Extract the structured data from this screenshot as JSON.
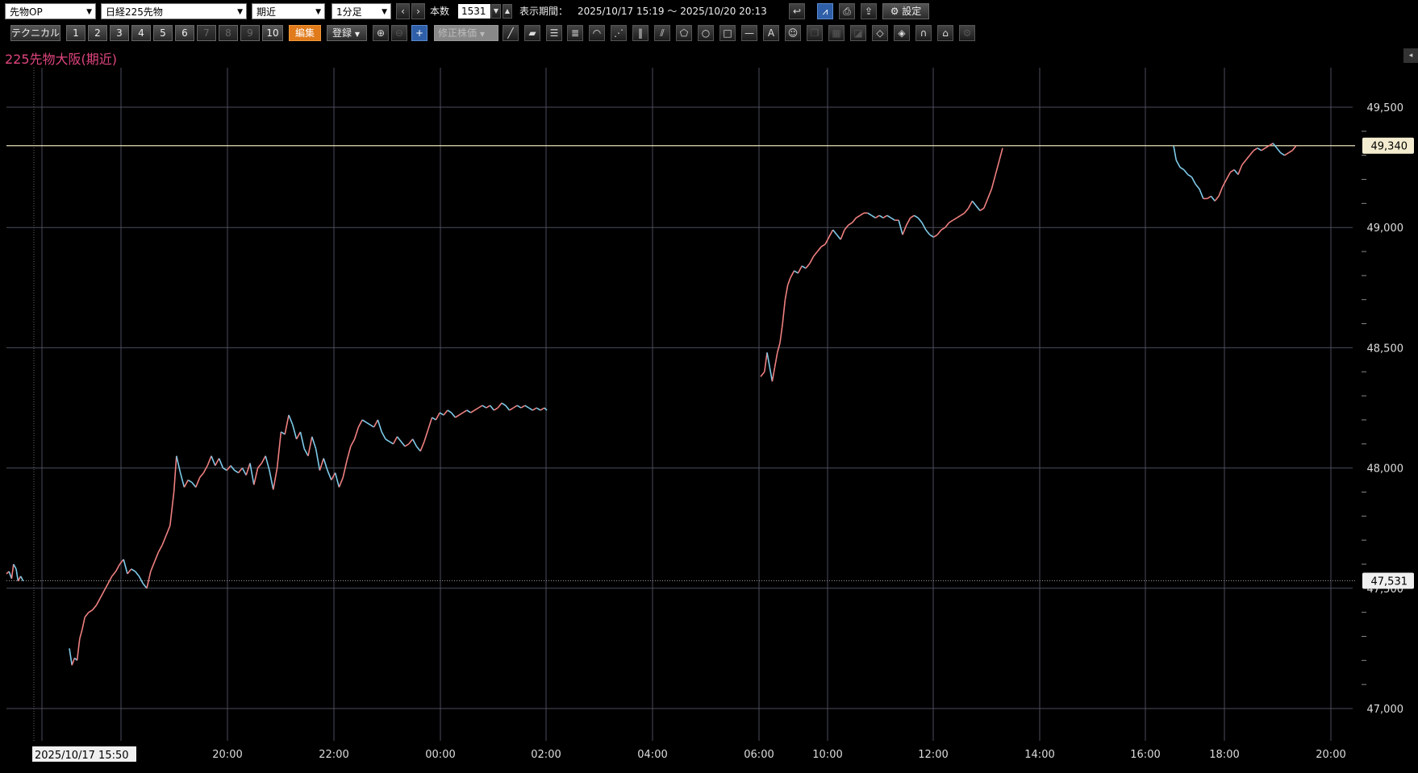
{
  "toolbar": {
    "market_select": "先物OP",
    "instrument_select": "日経225先物",
    "contract_select": "期近",
    "interval_select": "1分足",
    "prev_label": "‹",
    "next_label": "›",
    "bars_label": "本数",
    "bars_value": "1531",
    "period_label": "表示期間：",
    "period_value": "2025/10/17 15:19 ～ 2025/10/20 20:13",
    "settings_label": "設定",
    "technical_label": "テクニカル",
    "presets": [
      "1",
      "2",
      "3",
      "4",
      "5",
      "6",
      "7",
      "8",
      "9",
      "10"
    ],
    "edit_label": "編集",
    "register_label": "登録",
    "adjusted_price_label": "修正株価"
  },
  "chart_title": "225先物大阪(期近)",
  "chart_data": {
    "type": "line",
    "title": "225先物大阪(期近)",
    "ylim": [
      46940,
      49760
    ],
    "yticks": [
      47000,
      47500,
      48000,
      48500,
      49000,
      49500
    ],
    "ytick_labels": [
      "47,000",
      "47,500",
      "48,000",
      "48,500",
      "49,000",
      "49,500"
    ],
    "xtick_labels": [
      "20:00",
      "22:00",
      "00:00",
      "02:00",
      "04:00",
      "06:00",
      "10:00",
      "12:00",
      "14:00",
      "16:00",
      "18:00",
      "20:00"
    ],
    "cursor_label": "2025/10/17 15:50",
    "last_price": 49340,
    "last_price_label": "49,340",
    "ref_price": 47531,
    "ref_price_label": "47,531",
    "grid": true,
    "up_color": "#f08080",
    "down_color": "#7ecbea",
    "series": [
      {
        "segment": "pre",
        "points": [
          [
            0,
            47560
          ],
          [
            4,
            47570
          ],
          [
            8,
            47540
          ],
          [
            11,
            47600
          ],
          [
            15,
            47580
          ],
          [
            18,
            47530
          ],
          [
            22,
            47550
          ],
          [
            26,
            47530
          ]
        ]
      },
      {
        "segment": "night",
        "points": [
          [
            0,
            47250
          ],
          [
            4,
            47180
          ],
          [
            8,
            47210
          ],
          [
            12,
            47200
          ],
          [
            16,
            47290
          ],
          [
            20,
            47330
          ],
          [
            24,
            47380
          ],
          [
            30,
            47400
          ],
          [
            36,
            47410
          ],
          [
            42,
            47430
          ],
          [
            48,
            47460
          ],
          [
            54,
            47490
          ],
          [
            60,
            47520
          ],
          [
            66,
            47550
          ],
          [
            72,
            47570
          ],
          [
            78,
            47600
          ],
          [
            84,
            47620
          ],
          [
            90,
            47560
          ],
          [
            96,
            47580
          ],
          [
            102,
            47570
          ],
          [
            108,
            47550
          ],
          [
            114,
            47520
          ],
          [
            120,
            47500
          ],
          [
            126,
            47570
          ],
          [
            132,
            47610
          ],
          [
            138,
            47650
          ],
          [
            144,
            47680
          ],
          [
            150,
            47720
          ],
          [
            156,
            47760
          ],
          [
            162,
            47900
          ],
          [
            166,
            48050
          ],
          [
            172,
            47980
          ],
          [
            178,
            47920
          ],
          [
            184,
            47950
          ],
          [
            190,
            47940
          ],
          [
            196,
            47920
          ],
          [
            202,
            47960
          ],
          [
            208,
            47980
          ],
          [
            214,
            48010
          ],
          [
            220,
            48050
          ],
          [
            226,
            48010
          ],
          [
            232,
            48040
          ],
          [
            238,
            48000
          ],
          [
            244,
            47990
          ],
          [
            250,
            48010
          ],
          [
            256,
            47990
          ],
          [
            262,
            47980
          ],
          [
            268,
            48000
          ],
          [
            274,
            47970
          ],
          [
            280,
            48020
          ],
          [
            286,
            47930
          ],
          [
            292,
            48000
          ],
          [
            298,
            48020
          ],
          [
            304,
            48050
          ],
          [
            310,
            47990
          ],
          [
            316,
            47910
          ],
          [
            322,
            48000
          ],
          [
            328,
            48150
          ],
          [
            334,
            48140
          ],
          [
            340,
            48220
          ],
          [
            346,
            48180
          ],
          [
            352,
            48120
          ],
          [
            358,
            48150
          ],
          [
            364,
            48080
          ],
          [
            370,
            48050
          ],
          [
            376,
            48130
          ],
          [
            382,
            48080
          ],
          [
            388,
            47990
          ],
          [
            394,
            48040
          ],
          [
            400,
            47990
          ],
          [
            406,
            47950
          ],
          [
            412,
            47980
          ],
          [
            418,
            47920
          ],
          [
            424,
            47960
          ],
          [
            430,
            48030
          ],
          [
            436,
            48090
          ],
          [
            442,
            48120
          ],
          [
            448,
            48170
          ],
          [
            454,
            48200
          ],
          [
            460,
            48190
          ],
          [
            466,
            48180
          ],
          [
            472,
            48170
          ],
          [
            478,
            48200
          ],
          [
            484,
            48150
          ],
          [
            490,
            48120
          ],
          [
            496,
            48110
          ],
          [
            502,
            48100
          ],
          [
            508,
            48130
          ],
          [
            514,
            48110
          ],
          [
            520,
            48090
          ],
          [
            526,
            48100
          ],
          [
            532,
            48120
          ],
          [
            538,
            48090
          ],
          [
            544,
            48070
          ],
          [
            550,
            48110
          ],
          [
            556,
            48160
          ],
          [
            562,
            48210
          ],
          [
            568,
            48200
          ],
          [
            574,
            48230
          ],
          [
            580,
            48220
          ],
          [
            586,
            48240
          ],
          [
            592,
            48230
          ],
          [
            598,
            48210
          ],
          [
            604,
            48220
          ],
          [
            610,
            48230
          ],
          [
            616,
            48240
          ],
          [
            622,
            48230
          ],
          [
            628,
            48240
          ],
          [
            634,
            48250
          ],
          [
            640,
            48260
          ],
          [
            646,
            48250
          ],
          [
            652,
            48260
          ],
          [
            658,
            48240
          ],
          [
            664,
            48250
          ],
          [
            670,
            48270
          ],
          [
            676,
            48260
          ],
          [
            682,
            48240
          ],
          [
            688,
            48250
          ],
          [
            694,
            48260
          ],
          [
            700,
            48250
          ],
          [
            706,
            48260
          ],
          [
            712,
            48250
          ],
          [
            718,
            48240
          ],
          [
            724,
            48250
          ],
          [
            730,
            48240
          ],
          [
            736,
            48250
          ],
          [
            740,
            48240
          ]
        ]
      },
      {
        "segment": "day",
        "points": [
          [
            0,
            48380
          ],
          [
            6,
            48400
          ],
          [
            10,
            48480
          ],
          [
            14,
            48420
          ],
          [
            18,
            48360
          ],
          [
            22,
            48420
          ],
          [
            26,
            48480
          ],
          [
            30,
            48520
          ],
          [
            34,
            48600
          ],
          [
            38,
            48700
          ],
          [
            42,
            48760
          ],
          [
            46,
            48790
          ],
          [
            52,
            48820
          ],
          [
            58,
            48810
          ],
          [
            64,
            48840
          ],
          [
            70,
            48830
          ],
          [
            76,
            48850
          ],
          [
            82,
            48880
          ],
          [
            88,
            48900
          ],
          [
            94,
            48920
          ],
          [
            100,
            48930
          ],
          [
            106,
            48960
          ],
          [
            112,
            48990
          ],
          [
            118,
            48970
          ],
          [
            124,
            48950
          ],
          [
            130,
            48990
          ],
          [
            136,
            49010
          ],
          [
            142,
            49020
          ],
          [
            148,
            49040
          ],
          [
            154,
            49050
          ],
          [
            160,
            49060
          ],
          [
            166,
            49060
          ],
          [
            172,
            49050
          ],
          [
            178,
            49040
          ],
          [
            184,
            49050
          ],
          [
            190,
            49040
          ],
          [
            196,
            49050
          ],
          [
            202,
            49040
          ],
          [
            208,
            49030
          ],
          [
            214,
            49030
          ],
          [
            220,
            48970
          ],
          [
            226,
            49010
          ],
          [
            232,
            49040
          ],
          [
            238,
            49050
          ],
          [
            244,
            49040
          ],
          [
            250,
            49020
          ],
          [
            256,
            48990
          ],
          [
            262,
            48970
          ],
          [
            268,
            48960
          ],
          [
            274,
            48970
          ],
          [
            280,
            48990
          ],
          [
            286,
            49000
          ],
          [
            292,
            49020
          ],
          [
            298,
            49030
          ],
          [
            304,
            49040
          ],
          [
            310,
            49050
          ],
          [
            316,
            49060
          ],
          [
            322,
            49080
          ],
          [
            328,
            49110
          ],
          [
            334,
            49090
          ],
          [
            340,
            49070
          ],
          [
            346,
            49080
          ],
          [
            352,
            49120
          ],
          [
            358,
            49160
          ],
          [
            364,
            49220
          ],
          [
            370,
            49280
          ],
          [
            375,
            49330
          ]
        ]
      },
      {
        "segment": "evening",
        "points": [
          [
            0,
            49340
          ],
          [
            4,
            49280
          ],
          [
            10,
            49250
          ],
          [
            16,
            49240
          ],
          [
            22,
            49220
          ],
          [
            28,
            49210
          ],
          [
            34,
            49180
          ],
          [
            40,
            49160
          ],
          [
            46,
            49120
          ],
          [
            52,
            49120
          ],
          [
            58,
            49130
          ],
          [
            64,
            49110
          ],
          [
            70,
            49130
          ],
          [
            76,
            49170
          ],
          [
            82,
            49200
          ],
          [
            88,
            49230
          ],
          [
            94,
            49240
          ],
          [
            100,
            49220
          ],
          [
            106,
            49260
          ],
          [
            112,
            49280
          ],
          [
            118,
            49300
          ],
          [
            124,
            49320
          ],
          [
            130,
            49330
          ],
          [
            136,
            49320
          ],
          [
            142,
            49330
          ],
          [
            148,
            49340
          ],
          [
            154,
            49350
          ],
          [
            160,
            49330
          ],
          [
            166,
            49310
          ],
          [
            172,
            49300
          ],
          [
            178,
            49310
          ],
          [
            184,
            49320
          ],
          [
            190,
            49340
          ]
        ]
      }
    ]
  }
}
